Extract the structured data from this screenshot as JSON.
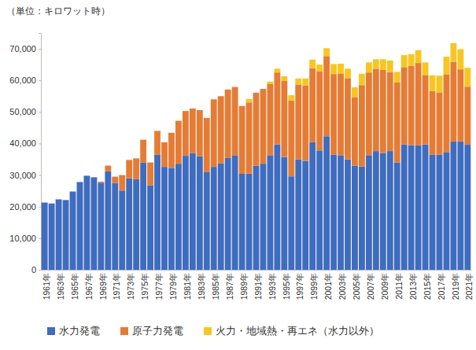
{
  "chart_data": {
    "type": "bar",
    "stacked": true,
    "orientation": "vertical",
    "grid": false,
    "legend": "bottom",
    "y_label": "（単位：キロワット時）",
    "categories": [
      "1961年",
      null,
      "1963年",
      null,
      "1965年",
      null,
      "1967年",
      null,
      "1969年",
      null,
      "1971年",
      null,
      "1973年",
      null,
      "1975年",
      null,
      "1977年",
      null,
      "1979年",
      null,
      "1981年",
      null,
      "1983年",
      null,
      "1985年",
      null,
      "1987年",
      null,
      "1989年",
      null,
      "1991年",
      null,
      "1993年",
      null,
      "1995年",
      null,
      "1997年",
      null,
      "1999年",
      null,
      "2001年",
      null,
      "2003年",
      null,
      "2005年",
      null,
      "2007年",
      null,
      "2009年",
      null,
      "2011年",
      null,
      "2013年",
      null,
      "2015年",
      null,
      "2017年",
      null,
      "2019年",
      null,
      "2021年"
    ],
    "ylim": [
      0,
      75000
    ],
    "yticks": [
      {
        "value": 0,
        "label": "0"
      },
      {
        "value": 10000,
        "label": "10,000"
      },
      {
        "value": 20000,
        "label": "20,000"
      },
      {
        "value": 30000,
        "label": "30,000"
      },
      {
        "value": 40000,
        "label": "40,000"
      },
      {
        "value": 50000,
        "label": "50,000"
      },
      {
        "value": 60000,
        "label": "60,000"
      },
      {
        "value": 70000,
        "label": "70,000"
      }
    ],
    "series": [
      {
        "name": "水力発電",
        "color": "#3f6cbf",
        "values": [
          21300,
          21000,
          22300,
          22100,
          24800,
          27800,
          29800,
          29300,
          27400,
          31200,
          27500,
          25100,
          29000,
          28700,
          34000,
          26700,
          36400,
          32600,
          32300,
          33600,
          36100,
          37000,
          36000,
          30900,
          32600,
          33700,
          35400,
          36300,
          30400,
          30500,
          33000,
          33600,
          36300,
          39700,
          35700,
          29600,
          35000,
          34500,
          40500,
          37800,
          42300,
          36500,
          36300,
          35000,
          33000,
          32700,
          36300,
          37600,
          37000,
          37600,
          34000,
          39700,
          39500,
          39400,
          39700,
          36400,
          36500,
          37300,
          40600,
          40700,
          39600
        ]
      },
      {
        "name": "原子力発電",
        "color": "#e57c36",
        "values": [
          0,
          0,
          0,
          0,
          0,
          0,
          0,
          0,
          500,
          1800,
          2000,
          4900,
          5800,
          6600,
          7200,
          7300,
          7600,
          7800,
          11100,
          13600,
          14200,
          14100,
          14600,
          17200,
          21400,
          21300,
          21700,
          21600,
          21500,
          22500,
          23100,
          23700,
          22500,
          22800,
          24100,
          24000,
          23700,
          23900,
          23400,
          25000,
          25400,
          25500,
          25900,
          25700,
          21700,
          25800,
          26200,
          26100,
          26300,
          25000,
          25300,
          24500,
          25100,
          26100,
          22000,
          20200,
          19700,
          24500,
          25300,
          22800,
          18400
        ]
      },
      {
        "name": "火力・地域熱・再エネ（水力以外）",
        "color": "#f6c624",
        "values": [
          0,
          0,
          0,
          0,
          0,
          0,
          0,
          0,
          0,
          0,
          0,
          0,
          0,
          0,
          0,
          0,
          0,
          0,
          0,
          0,
          0,
          0,
          0,
          0,
          0,
          0,
          0,
          0,
          0,
          1100,
          0,
          0,
          800,
          1200,
          1500,
          1700,
          1900,
          2200,
          2700,
          2200,
          2500,
          3200,
          3100,
          3000,
          3100,
          3600,
          3200,
          3000,
          3400,
          3700,
          3400,
          3800,
          3700,
          4100,
          4000,
          5000,
          5300,
          5700,
          5900,
          6400,
          6000
        ]
      }
    ]
  }
}
